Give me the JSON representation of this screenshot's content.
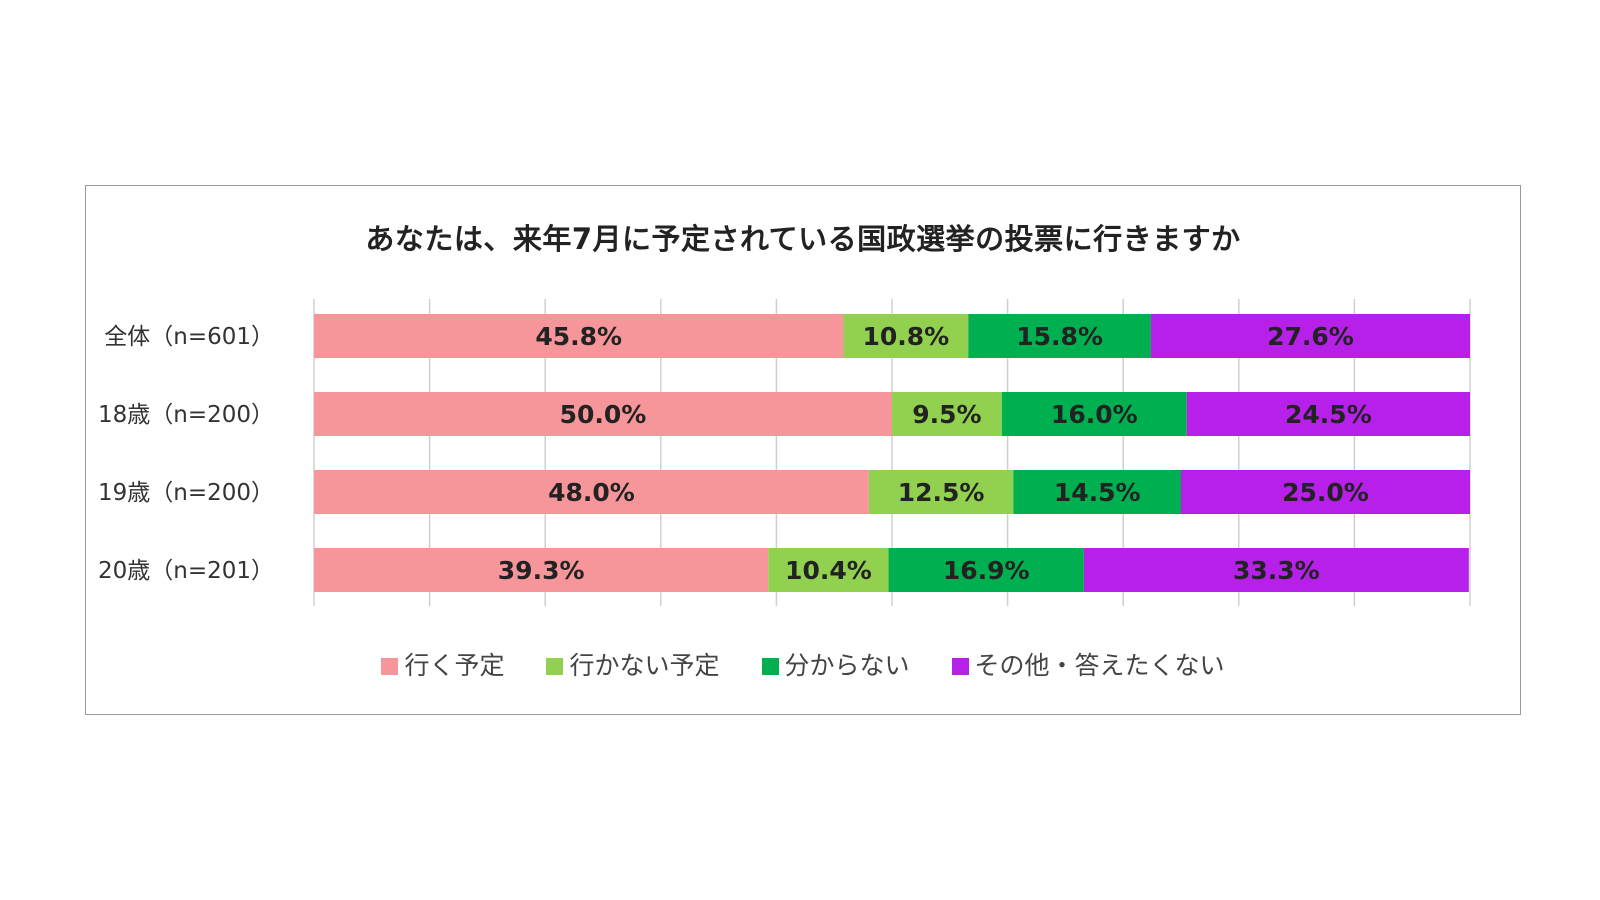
{
  "chart_data": {
    "type": "bar",
    "orientation": "horizontal",
    "stacked": "percent",
    "title": "あなたは、来年7月に予定されている国政選挙の投票に行きますか",
    "categories": [
      "全体（n=601）",
      "18歳（n=200）",
      "19歳（n=200）",
      "20歳（n=201）"
    ],
    "series": [
      {
        "name": "行く予定",
        "color": "#f7969a",
        "values": [
          45.8,
          50.0,
          48.0,
          39.3
        ],
        "labels": [
          "45.8%",
          "50.0%",
          "48.0%",
          "39.3%"
        ]
      },
      {
        "name": "行かない予定",
        "color": "#92d050",
        "values": [
          10.8,
          9.5,
          12.5,
          10.4
        ],
        "labels": [
          "10.8%",
          "9.5%",
          "12.5%",
          "10.4%"
        ]
      },
      {
        "name": "分からない",
        "color": "#00b050",
        "values": [
          15.8,
          16.0,
          14.5,
          16.9
        ],
        "labels": [
          "15.8%",
          "16.0%",
          "14.5%",
          "16.9%"
        ]
      },
      {
        "name": "その他・答えたくない",
        "color": "#b620e8",
        "values": [
          27.6,
          24.5,
          25.0,
          33.3
        ],
        "labels": [
          "27.6%",
          "24.5%",
          "25.0%",
          "33.3%"
        ]
      }
    ],
    "xlim": [
      0,
      100
    ],
    "grid": true,
    "legend_position": "bottom"
  }
}
